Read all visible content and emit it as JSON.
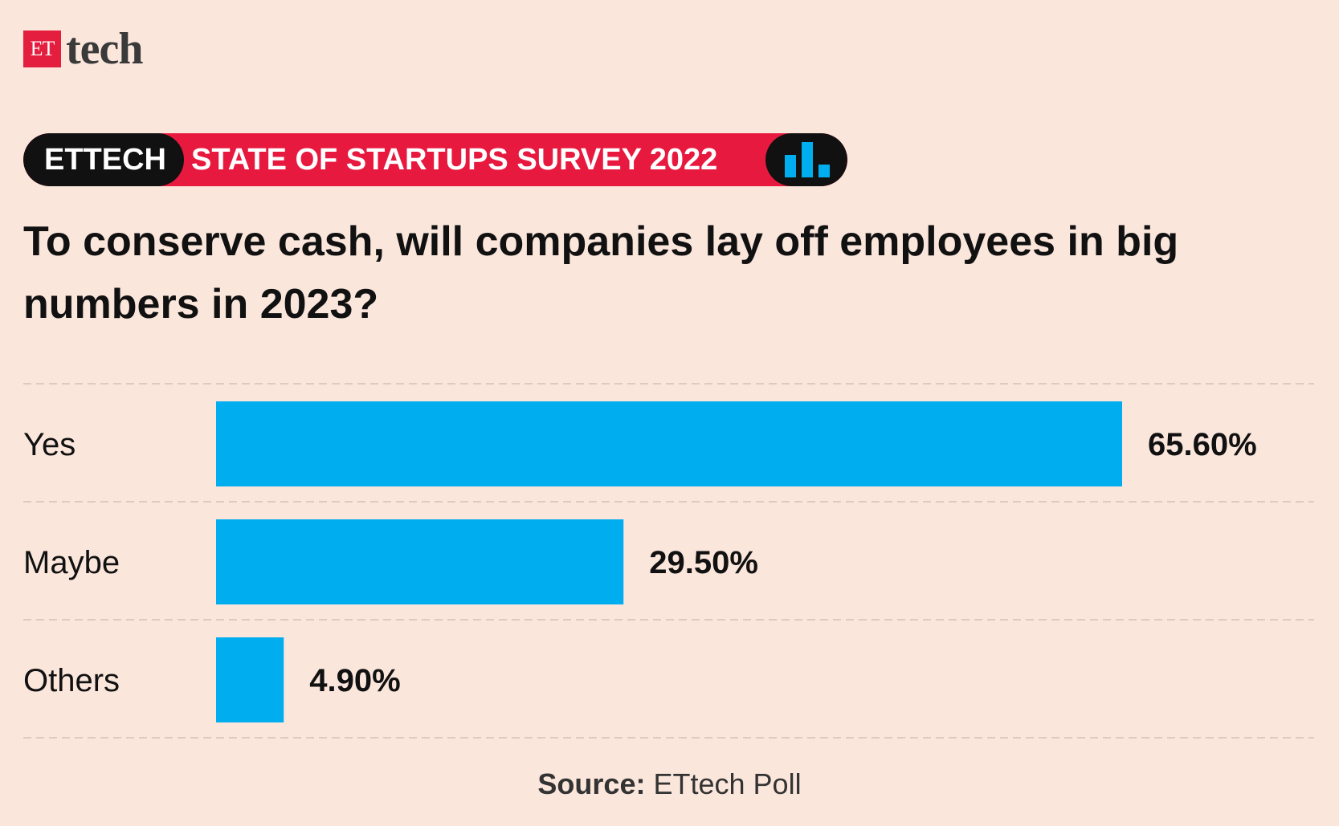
{
  "logo": {
    "badge": "ET",
    "word": "tech"
  },
  "banner": {
    "brand": "ETTECH",
    "title": "STATE OF STARTUPS SURVEY 2022",
    "icon": "bar-chart-icon"
  },
  "colors": {
    "background": "#fbe6dc",
    "bar": "#00aeef",
    "banner_red": "#e8193f",
    "banner_black": "#111111"
  },
  "chart_data": {
    "type": "bar",
    "orientation": "horizontal",
    "title": "To conserve cash, will companies lay off employees in big numbers in 2023?",
    "categories": [
      "Yes",
      "Maybe",
      "Others"
    ],
    "values": [
      65.6,
      29.5,
      4.9
    ],
    "value_labels": [
      "65.60%",
      "29.50%",
      "4.90%"
    ],
    "xlim": [
      0,
      100
    ],
    "xlabel": "",
    "ylabel": "",
    "grid": false
  },
  "source": {
    "label": "Source:",
    "text": "ETtech Poll"
  }
}
